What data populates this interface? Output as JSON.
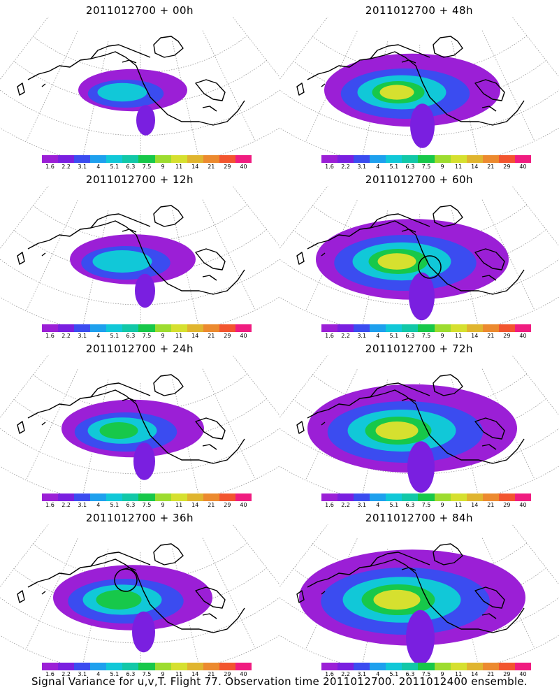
{
  "panels": [
    {
      "title": "2011012700 + 00h",
      "intensity": 0.15,
      "circle": false
    },
    {
      "title": "2011012700 + 48h",
      "intensity": 0.55,
      "circle": false
    },
    {
      "title": "2011012700 + 12h",
      "intensity": 0.25,
      "circle": false
    },
    {
      "title": "2011012700 + 60h",
      "intensity": 0.65,
      "circle": true
    },
    {
      "title": "2011012700 + 24h",
      "intensity": 0.35,
      "circle": false
    },
    {
      "title": "2011012700 + 72h",
      "intensity": 0.75,
      "circle": false
    },
    {
      "title": "2011012700 + 36h",
      "intensity": 0.45,
      "circle": true
    },
    {
      "title": "2011012700 + 84h",
      "intensity": 0.85,
      "circle": false
    }
  ],
  "colorbar": {
    "labels": [
      "1.6",
      "2.2",
      "3.1",
      "4",
      "5.1",
      "6.3",
      "7.5",
      "9",
      "11",
      "14",
      "21",
      "29",
      "40"
    ],
    "colors": [
      "#9b1fd6",
      "#7a1fe0",
      "#3b4cf0",
      "#1ea0ee",
      "#11c8d8",
      "#12c8a8",
      "#17c84a",
      "#9ddc2f",
      "#d6e02f",
      "#e0b52f",
      "#ec8a2f",
      "#f2552f",
      "#f01c80"
    ]
  },
  "caption": "Signal Variance for u,v,T. Flight 77. Observation time 2011012700. 2011012400 ensemble."
}
